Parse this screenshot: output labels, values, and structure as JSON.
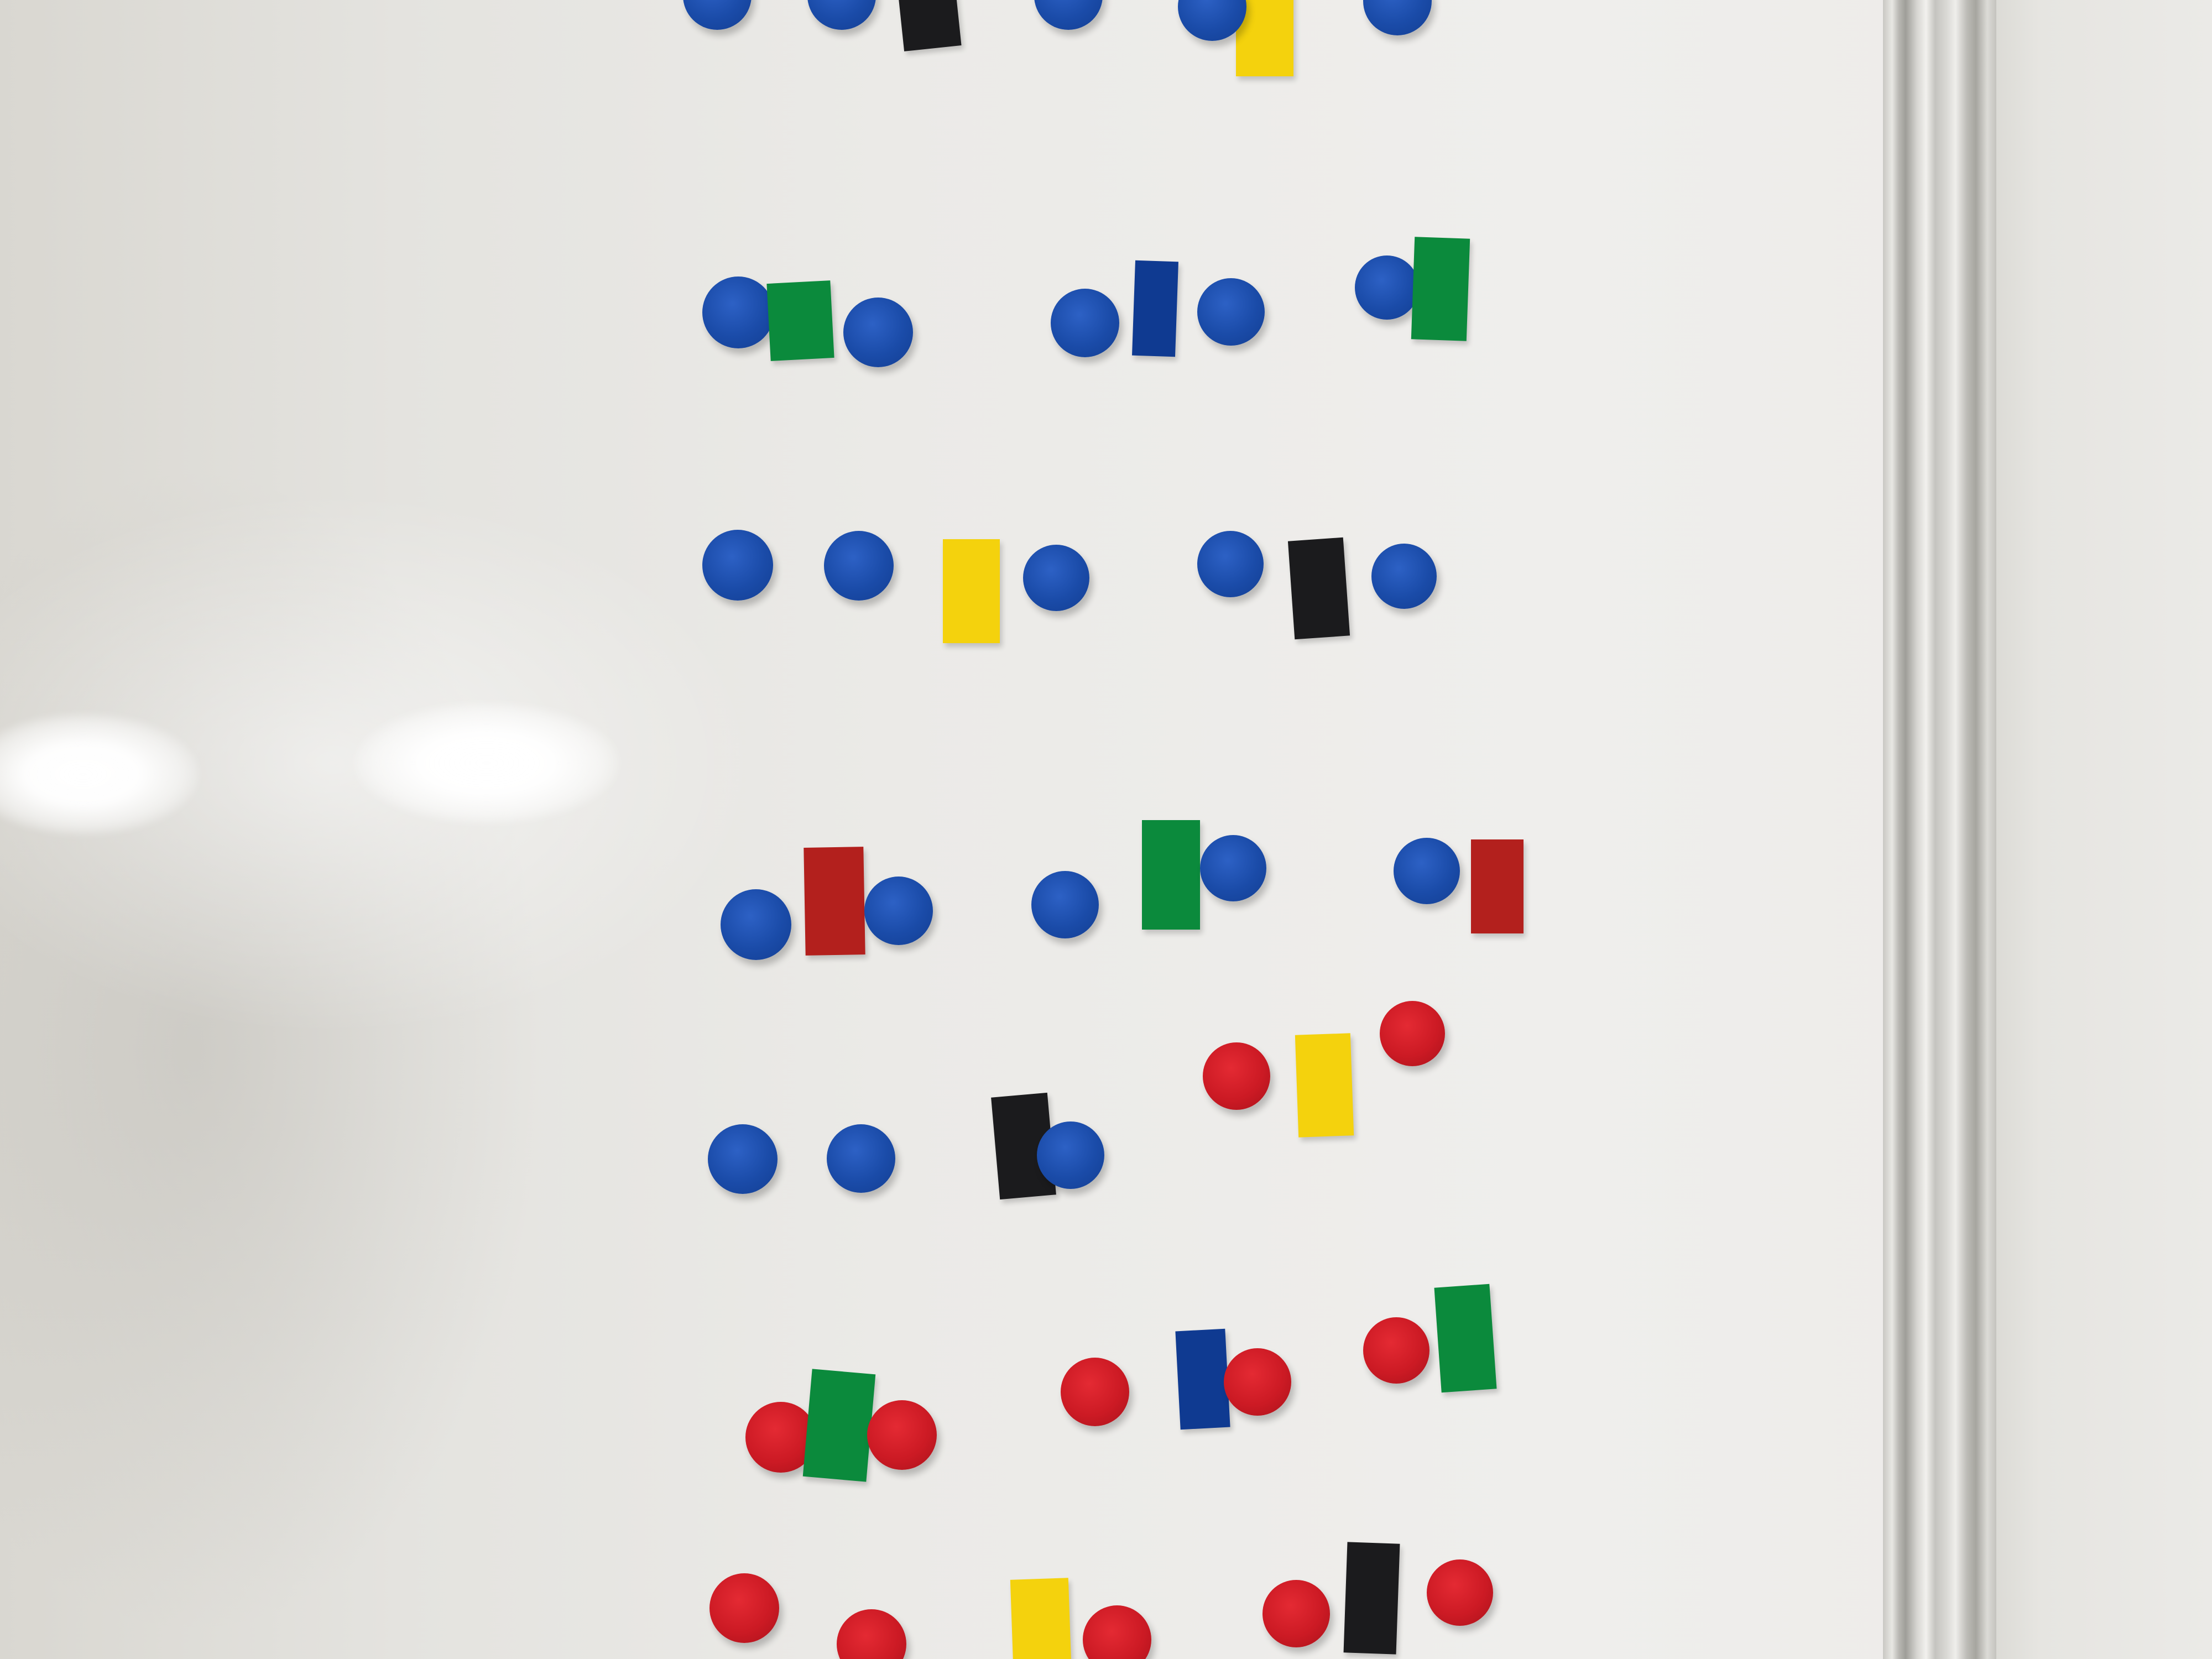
{
  "scene": {
    "description_kind": "whiteboard-photo",
    "colors": {
      "board": "#ebeae7",
      "rail": "#c9c8c3",
      "magnet_blue": "#1a4ba8",
      "magnet_red": "#cc1a24",
      "strip_green": "#0b8a3c",
      "strip_navy": "#0f3a91",
      "strip_yellow": "#f4d20d",
      "strip_black": "#1b1b1d",
      "strip_red": "#b3201d"
    },
    "rows": [
      {
        "items": [
          "blue-magnet",
          "blue-magnet",
          "black-strip",
          "blue-magnet",
          "blue-magnet",
          "yellow-strip",
          "blue-magnet"
        ]
      },
      {
        "items": [
          "blue-magnet",
          "green-strip",
          "blue-magnet",
          "blue-magnet",
          "navy-strip",
          "blue-magnet",
          "blue-magnet",
          "green-strip"
        ]
      },
      {
        "items": [
          "blue-magnet",
          "blue-magnet",
          "yellow-strip",
          "blue-magnet",
          "blue-magnet",
          "black-strip",
          "blue-magnet"
        ]
      },
      {
        "items": [
          "blue-magnet",
          "red-strip",
          "blue-magnet",
          "blue-magnet",
          "green-strip",
          "blue-magnet",
          "blue-magnet",
          "red-strip"
        ]
      },
      {
        "items": [
          "blue-magnet",
          "blue-magnet",
          "black-strip",
          "blue-magnet",
          "red-magnet",
          "yellow-strip",
          "red-magnet"
        ]
      },
      {
        "items": [
          "red-magnet",
          "green-strip",
          "red-magnet",
          "red-magnet",
          "navy-strip",
          "red-magnet",
          "red-magnet",
          "green-strip"
        ]
      },
      {
        "items": [
          "red-magnet",
          "red-magnet",
          "yellow-strip",
          "red-magnet",
          "red-magnet",
          "black-strip",
          "red-magnet"
        ]
      }
    ]
  }
}
